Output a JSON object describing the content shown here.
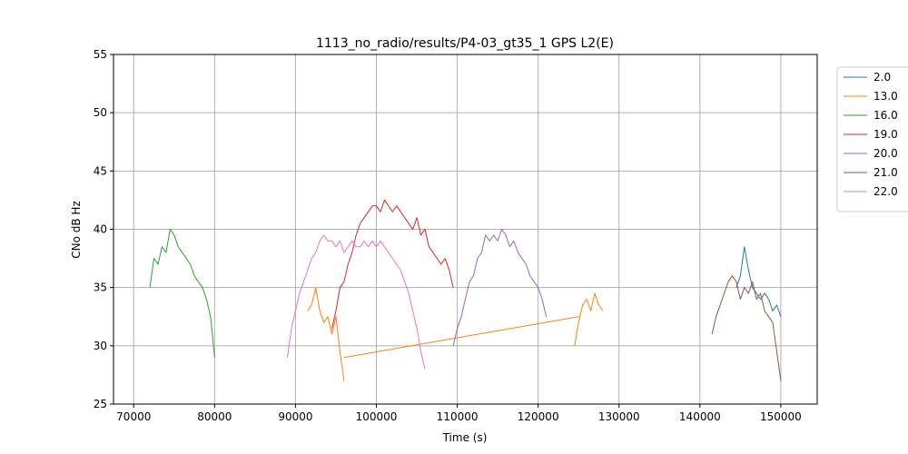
{
  "chart_data": {
    "type": "line",
    "title": "1113_no_radio/results/P4-03_gt35_1 GPS L2(E)",
    "xlabel": "Time (s)",
    "ylabel": "CNo dB Hz",
    "xlim": [
      67500,
      154500
    ],
    "ylim": [
      25,
      55
    ],
    "xticks": [
      70000,
      80000,
      90000,
      100000,
      110000,
      120000,
      130000,
      140000,
      150000
    ],
    "yticks": [
      25,
      30,
      35,
      40,
      45,
      50,
      55
    ],
    "grid": true,
    "legend_position": "right-outside",
    "series": [
      {
        "name": "2.0",
        "color": "#1f77b4",
        "segments": [
          [
            [
              144500,
              35.0
            ],
            [
              145000,
              36.0
            ],
            [
              145500,
              38.5
            ],
            [
              146000,
              36.5
            ],
            [
              146500,
              35.0
            ],
            [
              147000,
              34.5
            ],
            [
              147500,
              34.0
            ],
            [
              148000,
              34.5
            ],
            [
              148500,
              34.0
            ],
            [
              149000,
              33.0
            ],
            [
              149500,
              33.5
            ],
            [
              150000,
              32.5
            ]
          ]
        ]
      },
      {
        "name": "13.0",
        "color": "#ff7f0e",
        "segments": [
          [
            [
              91500,
              33.0
            ],
            [
              92000,
              33.5
            ],
            [
              92500,
              35.0
            ],
            [
              93000,
              33.0
            ],
            [
              93500,
              32.0
            ],
            [
              94000,
              32.5
            ],
            [
              94500,
              31.0
            ],
            [
              95000,
              32.5
            ],
            [
              95500,
              29.5
            ],
            [
              96000,
              27.0
            ]
          ],
          [
            [
              96000,
              29.0
            ],
            [
              125000,
              32.5
            ]
          ],
          [
            [
              124500,
              30.0
            ],
            [
              125000,
              32.0
            ],
            [
              125500,
              33.5
            ],
            [
              126000,
              34.0
            ],
            [
              126500,
              33.0
            ],
            [
              127000,
              34.5
            ],
            [
              127500,
              33.5
            ],
            [
              128000,
              33.0
            ]
          ]
        ]
      },
      {
        "name": "16.0",
        "color": "#2ca02c",
        "segments": [
          [
            [
              72000,
              35.0
            ],
            [
              72500,
              37.5
            ],
            [
              73000,
              37.0
            ],
            [
              73500,
              38.5
            ],
            [
              74000,
              38.0
            ],
            [
              74500,
              40.0
            ],
            [
              75000,
              39.5
            ],
            [
              75500,
              38.5
            ],
            [
              76000,
              38.0
            ],
            [
              76500,
              37.5
            ],
            [
              77000,
              37.0
            ],
            [
              77500,
              36.0
            ],
            [
              78000,
              35.5
            ],
            [
              78500,
              35.0
            ],
            [
              79000,
              34.0
            ],
            [
              79500,
              32.5
            ],
            [
              80000,
              29.0
            ]
          ]
        ]
      },
      {
        "name": "19.0",
        "color": "#d62728",
        "segments": [
          [
            [
              94500,
              31.5
            ],
            [
              95000,
              33.0
            ],
            [
              95500,
              35.0
            ],
            [
              96000,
              35.5
            ],
            [
              96500,
              37.0
            ],
            [
              97000,
              38.0
            ],
            [
              97500,
              39.5
            ],
            [
              98000,
              40.5
            ],
            [
              98500,
              41.0
            ],
            [
              99000,
              41.5
            ],
            [
              99500,
              42.0
            ],
            [
              100000,
              42.0
            ],
            [
              100500,
              41.5
            ],
            [
              101000,
              42.5
            ],
            [
              101500,
              42.0
            ],
            [
              102000,
              41.5
            ],
            [
              102500,
              42.0
            ],
            [
              103000,
              41.5
            ],
            [
              103500,
              41.0
            ],
            [
              104000,
              40.5
            ],
            [
              104500,
              40.0
            ],
            [
              105000,
              41.0
            ],
            [
              105500,
              39.5
            ],
            [
              106000,
              40.0
            ],
            [
              106500,
              38.5
            ],
            [
              107000,
              38.0
            ],
            [
              107500,
              37.5
            ],
            [
              108000,
              37.0
            ],
            [
              108500,
              37.5
            ],
            [
              109000,
              36.5
            ],
            [
              109500,
              35.0
            ]
          ]
        ]
      },
      {
        "name": "20.0",
        "color": "#9467bd",
        "segments": [
          [
            [
              109500,
              30.0
            ],
            [
              110000,
              31.5
            ],
            [
              110500,
              32.5
            ],
            [
              111000,
              34.0
            ],
            [
              111500,
              35.5
            ],
            [
              112000,
              36.0
            ],
            [
              112500,
              37.5
            ],
            [
              113000,
              38.0
            ],
            [
              113500,
              39.5
            ],
            [
              114000,
              39.0
            ],
            [
              114500,
              39.5
            ],
            [
              115000,
              39.0
            ],
            [
              115500,
              40.0
            ],
            [
              116000,
              39.5
            ],
            [
              116500,
              38.5
            ],
            [
              117000,
              39.0
            ],
            [
              117500,
              38.0
            ],
            [
              118000,
              37.5
            ],
            [
              118500,
              37.0
            ],
            [
              119000,
              36.0
            ],
            [
              119500,
              35.5
            ],
            [
              120000,
              35.0
            ],
            [
              120500,
              34.0
            ],
            [
              121000,
              32.5
            ]
          ]
        ]
      },
      {
        "name": "21.0",
        "color": "#8c564b",
        "segments": [
          [
            [
              141500,
              31.0
            ],
            [
              142000,
              32.5
            ],
            [
              142500,
              33.5
            ],
            [
              143000,
              34.5
            ],
            [
              143500,
              35.5
            ],
            [
              144000,
              36.0
            ],
            [
              144500,
              35.5
            ],
            [
              145000,
              34.0
            ],
            [
              145500,
              35.0
            ],
            [
              146000,
              34.5
            ],
            [
              146500,
              35.5
            ],
            [
              147000,
              34.0
            ],
            [
              147500,
              34.5
            ],
            [
              148000,
              33.0
            ],
            [
              148500,
              32.5
            ],
            [
              149000,
              32.0
            ],
            [
              149500,
              29.5
            ],
            [
              150000,
              27.0
            ]
          ]
        ]
      },
      {
        "name": "22.0",
        "color": "#e377c2",
        "segments": [
          [
            [
              89000,
              29.0
            ],
            [
              89500,
              31.5
            ],
            [
              90000,
              33.0
            ],
            [
              90500,
              34.5
            ],
            [
              91000,
              35.5
            ],
            [
              91500,
              36.5
            ],
            [
              92000,
              37.5
            ],
            [
              92500,
              38.0
            ],
            [
              93000,
              39.0
            ],
            [
              93500,
              39.5
            ],
            [
              94000,
              39.0
            ],
            [
              94500,
              39.0
            ],
            [
              95000,
              38.5
            ],
            [
              95500,
              39.0
            ],
            [
              96000,
              38.0
            ],
            [
              96500,
              38.5
            ],
            [
              97000,
              39.0
            ],
            [
              97500,
              38.5
            ],
            [
              98000,
              38.5
            ],
            [
              98500,
              39.0
            ],
            [
              99000,
              38.5
            ],
            [
              99500,
              39.0
            ],
            [
              100000,
              38.5
            ],
            [
              100500,
              39.0
            ],
            [
              101000,
              38.5
            ],
            [
              101500,
              38.0
            ],
            [
              102000,
              37.5
            ],
            [
              102500,
              37.0
            ],
            [
              103000,
              36.5
            ],
            [
              103500,
              35.5
            ],
            [
              104000,
              34.5
            ],
            [
              104500,
              33.0
            ],
            [
              105000,
              31.5
            ],
            [
              105500,
              29.5
            ],
            [
              106000,
              28.0
            ]
          ]
        ]
      }
    ]
  }
}
